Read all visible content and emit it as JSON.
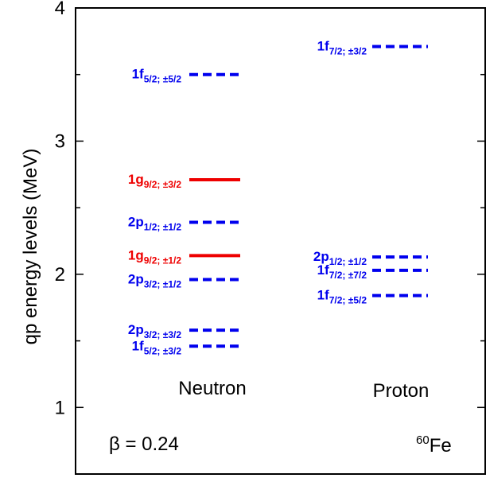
{
  "chart_data": {
    "type": "level-diagram",
    "ylabel": "qp energy levels (MeV)",
    "ylim": [
      0.5,
      4.0
    ],
    "yticks": [
      "1",
      "2",
      "3",
      "4"
    ],
    "minor_ticks": true,
    "columns": [
      {
        "name": "Neutron"
      },
      {
        "name": "Proton"
      }
    ],
    "annotations": {
      "beta": "β = 0.24",
      "nucleus_mass": "60",
      "nucleus_symbol": "Fe"
    },
    "colors": {
      "blue": "#0000ee",
      "red": "#ee0000"
    },
    "levels": [
      {
        "group": "Neutron",
        "energy": 3.5,
        "orbital": "1f",
        "sub": "5/2; ±5/2",
        "color": "blue",
        "style": "dashed"
      },
      {
        "group": "Neutron",
        "energy": 2.71,
        "orbital": "1g",
        "sub": "9/2; ±3/2",
        "color": "red",
        "style": "solid"
      },
      {
        "group": "Neutron",
        "energy": 2.39,
        "orbital": "2p",
        "sub": "1/2; ±1/2",
        "color": "blue",
        "style": "dashed"
      },
      {
        "group": "Neutron",
        "energy": 2.14,
        "orbital": "1g",
        "sub": "9/2; ±1/2",
        "color": "red",
        "style": "solid"
      },
      {
        "group": "Neutron",
        "energy": 1.96,
        "orbital": "2p",
        "sub": "3/2; ±1/2",
        "color": "blue",
        "style": "dashed"
      },
      {
        "group": "Neutron",
        "energy": 1.58,
        "orbital": "2p",
        "sub": "3/2; ±3/2",
        "color": "blue",
        "style": "dashed"
      },
      {
        "group": "Neutron",
        "energy": 1.46,
        "orbital": "1f",
        "sub": "5/2; ±3/2",
        "color": "blue",
        "style": "dashed"
      },
      {
        "group": "Proton",
        "energy": 3.71,
        "orbital": "1f",
        "sub": "7/2; ±3/2",
        "color": "blue",
        "style": "dashed"
      },
      {
        "group": "Proton",
        "energy": 2.13,
        "orbital": "2p",
        "sub": "1/2; ±1/2",
        "color": "blue",
        "style": "dashed"
      },
      {
        "group": "Proton",
        "energy": 2.03,
        "orbital": "1f",
        "sub": "7/2; ±7/2",
        "color": "blue",
        "style": "dashed"
      },
      {
        "group": "Proton",
        "energy": 1.84,
        "orbital": "1f",
        "sub": "7/2; ±5/2",
        "color": "blue",
        "style": "dashed"
      }
    ]
  }
}
